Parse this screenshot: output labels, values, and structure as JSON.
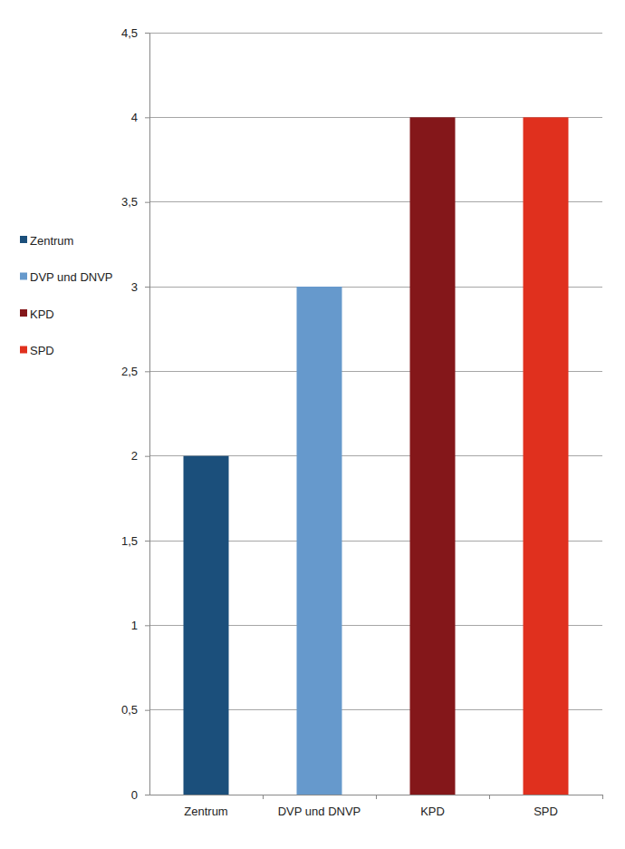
{
  "chart_data": {
    "type": "bar",
    "categories": [
      "Zentrum",
      "DVP und DNVP",
      "KPD",
      "SPD"
    ],
    "values": [
      2,
      3,
      4,
      4
    ],
    "colors": [
      "#1b4f7b",
      "#6699cc",
      "#84171a",
      "#e0301e"
    ],
    "ylim": [
      0,
      4.5
    ],
    "yticks": [
      0,
      {
        "value": 0.5,
        "label": "0,5"
      },
      1,
      {
        "value": 1.5,
        "label": "1,5"
      },
      2,
      {
        "value": 2.5,
        "label": "2,5"
      },
      3,
      {
        "value": 3.5,
        "label": "3,5"
      },
      4,
      {
        "value": 4.5,
        "label": "4,5"
      }
    ],
    "grid": true,
    "legend": "left"
  }
}
